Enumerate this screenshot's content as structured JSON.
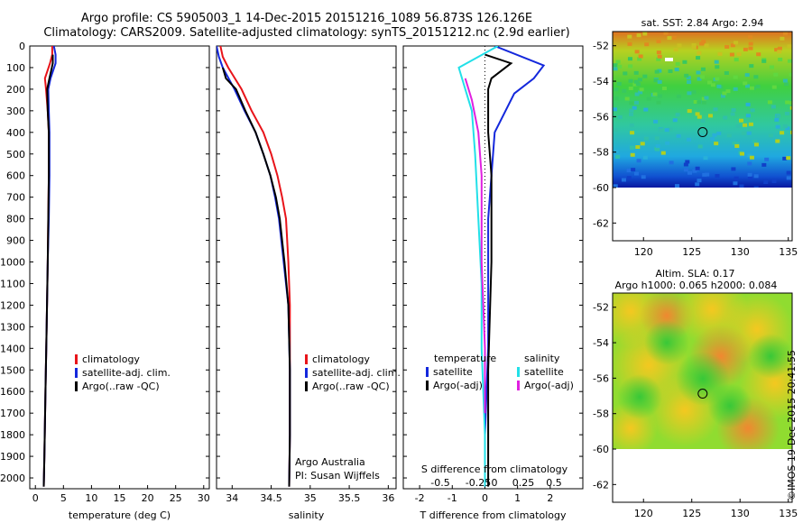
{
  "header": {
    "line1": "Argo profile: CS 5905003_1 14-Dec-2015 20151216_1089 56.873S 126.126E",
    "line2": "Climatology: CARS2009. Satellite-adjusted climatology: synTS_20151212.nc (2.9d earlier)"
  },
  "credit": {
    "line1": "Argo Australia",
    "line2": "PI: Susan Wijffels"
  },
  "stamp": "©IMOS 19-Dec-2015 20:41:55",
  "colors": {
    "climatology": "#e8141a",
    "satellite": "#1428dc",
    "argo": "#000000",
    "satellite_sal": "#22e0e8",
    "argo_adj_sal": "#e020e0"
  },
  "chart_data": [
    {
      "type": "line",
      "xlabel": "temperature (deg C)",
      "ylabel": "",
      "xlim": [
        -1,
        31
      ],
      "ylim": [
        2050,
        0
      ],
      "xticks": [
        0,
        5,
        10,
        15,
        20,
        25,
        30
      ],
      "yticks": [
        0,
        100,
        200,
        300,
        400,
        500,
        600,
        700,
        800,
        900,
        1000,
        1100,
        1200,
        1300,
        1400,
        1500,
        1600,
        1700,
        1800,
        1900,
        2000
      ],
      "legend": [
        "climatology",
        "satellite-adj. clim.",
        "Argo(..raw -QC)"
      ],
      "series": [
        {
          "name": "climatology",
          "color": "#e8141a",
          "x": [
            3.0,
            3.0,
            2.6,
            1.7,
            1.9,
            2.2,
            2.4,
            2.4,
            2.3,
            2.2,
            2.0,
            1.8,
            1.6,
            1.5
          ],
          "y": [
            0,
            40,
            80,
            150,
            200,
            300,
            400,
            600,
            800,
            1000,
            1300,
            1600,
            1900,
            2040
          ]
        },
        {
          "name": "satellite-adj. clim.",
          "color": "#1428dc",
          "x": [
            3.3,
            3.6,
            3.6,
            2.7,
            2.3,
            2.4,
            2.5,
            2.5,
            2.4,
            2.2,
            2.0,
            1.8,
            1.6,
            1.5
          ],
          "y": [
            0,
            40,
            80,
            150,
            200,
            300,
            400,
            600,
            800,
            1000,
            1300,
            1600,
            1900,
            2040
          ]
        },
        {
          "name": "Argo(..raw -QC)",
          "color": "#000000",
          "x": [
            3.1,
            3.1,
            2.5,
            2.1,
            2.2,
            2.4,
            2.4,
            2.3,
            2.2,
            2.0,
            1.8,
            1.6,
            1.5
          ],
          "y": [
            40,
            80,
            150,
            200,
            300,
            400,
            600,
            800,
            1000,
            1300,
            1600,
            1900,
            2040
          ]
        }
      ]
    },
    {
      "type": "line",
      "xlabel": "salinity",
      "ylabel": "",
      "xlim": [
        33.8,
        36.1
      ],
      "ylim": [
        2050,
        0
      ],
      "xticks": [
        34,
        34.5,
        35,
        35.5,
        36
      ],
      "legend": [
        "climatology",
        "satellite-adj. clim.",
        "Argo(..raw -QC)"
      ],
      "series": [
        {
          "name": "climatology",
          "color": "#e8141a",
          "x": [
            33.85,
            33.88,
            33.95,
            34.12,
            34.25,
            34.4,
            34.5,
            34.58,
            34.64,
            34.69,
            34.72,
            34.74,
            34.74,
            34.74,
            34.73
          ],
          "y": [
            0,
            50,
            100,
            200,
            300,
            400,
            500,
            600,
            700,
            800,
            1000,
            1200,
            1500,
            1800,
            2040
          ]
        },
        {
          "name": "satellite-adj. clim.",
          "color": "#1428dc",
          "x": [
            33.8,
            33.83,
            33.88,
            34.03,
            34.16,
            34.3,
            34.4,
            34.49,
            34.55,
            34.6,
            34.66,
            34.72,
            34.74,
            34.74,
            34.73
          ],
          "y": [
            0,
            50,
            100,
            200,
            300,
            400,
            500,
            600,
            700,
            800,
            1000,
            1200,
            1500,
            1800,
            2040
          ]
        },
        {
          "name": "Argo(..raw -QC)",
          "color": "#000000",
          "x": [
            33.88,
            33.92,
            34.05,
            34.17,
            34.3,
            34.4,
            34.49,
            34.56,
            34.61,
            34.67,
            34.72,
            34.74,
            34.74,
            34.73
          ],
          "y": [
            100,
            150,
            200,
            300,
            400,
            500,
            600,
            700,
            800,
            1000,
            1200,
            1500,
            1800,
            2040
          ]
        }
      ]
    },
    {
      "type": "line",
      "xlabel": "T difference from climatology",
      "x2label": "S difference from climatology",
      "xlim": [
        -2.5,
        3.0
      ],
      "ylim": [
        2050,
        0
      ],
      "xticks": [
        -2,
        -1,
        0,
        1,
        2
      ],
      "x2ticks": [
        "-0.5",
        "-0.25",
        "0",
        "0.25",
        "0.5"
      ],
      "legend_temperature": {
        "title": "temperature",
        "items": [
          "satellite",
          "Argo(-adj)"
        ]
      },
      "legend_salinity": {
        "title": "salinity",
        "items": [
          "satellite",
          "Argo(-adj)"
        ]
      },
      "series": [
        {
          "name": "temperature satellite",
          "color": "#1428dc",
          "x": [
            0.3,
            1.8,
            1.5,
            0.9,
            0.3,
            0.2,
            0.1,
            0.1,
            0.1,
            0.0,
            0.0
          ],
          "y": [
            0,
            90,
            150,
            220,
            400,
            600,
            800,
            1000,
            1400,
            1800,
            2040
          ]
        },
        {
          "name": "temperature Argo(-adj)",
          "color": "#000000",
          "x": [
            0.0,
            0.8,
            0.2,
            0.1,
            0.1,
            0.2,
            0.2,
            0.2,
            0.1,
            0.1
          ],
          "y": [
            40,
            80,
            150,
            200,
            400,
            600,
            800,
            1000,
            1500,
            2040
          ]
        },
        {
          "name": "salinity satellite",
          "color": "#22e0e8",
          "x": [
            0.4,
            -0.8,
            -0.6,
            -0.4,
            -0.3,
            -0.2,
            -0.1,
            -0.1,
            0.0,
            0.0
          ],
          "y": [
            0,
            100,
            200,
            300,
            500,
            800,
            1100,
            1400,
            1800,
            2040
          ]
        },
        {
          "name": "salinity Argo(-adj)",
          "color": "#e020e0",
          "x": [
            -0.6,
            -0.4,
            -0.2,
            -0.1,
            -0.1,
            -0.1,
            0.0,
            0.0
          ],
          "y": [
            150,
            250,
            400,
            600,
            800,
            1000,
            1400,
            1700
          ]
        }
      ]
    },
    {
      "type": "heatmap",
      "title": "sat. SST: 2.84 Argo: 2.94",
      "xlim": [
        116.8,
        135.4
      ],
      "ylim": [
        -63,
        -51.2
      ],
      "xticks": [
        120,
        125,
        130,
        135
      ],
      "yticks": [
        -52,
        -54,
        -56,
        -58,
        -60,
        -62
      ],
      "marker": {
        "lon": 126.126,
        "lat": -56.873
      }
    },
    {
      "type": "heatmap",
      "title": "Altim. SLA: 0.17",
      "subtitle": "Argo h1000: 0.065 h2000: 0.084",
      "xlim": [
        116.8,
        135.4
      ],
      "ylim": [
        -63,
        -51.2
      ],
      "xticks": [
        120,
        125,
        130,
        135
      ],
      "yticks": [
        -52,
        -54,
        -56,
        -58,
        -60,
        -62
      ],
      "marker": {
        "lon": 126.126,
        "lat": -56.873
      }
    }
  ]
}
